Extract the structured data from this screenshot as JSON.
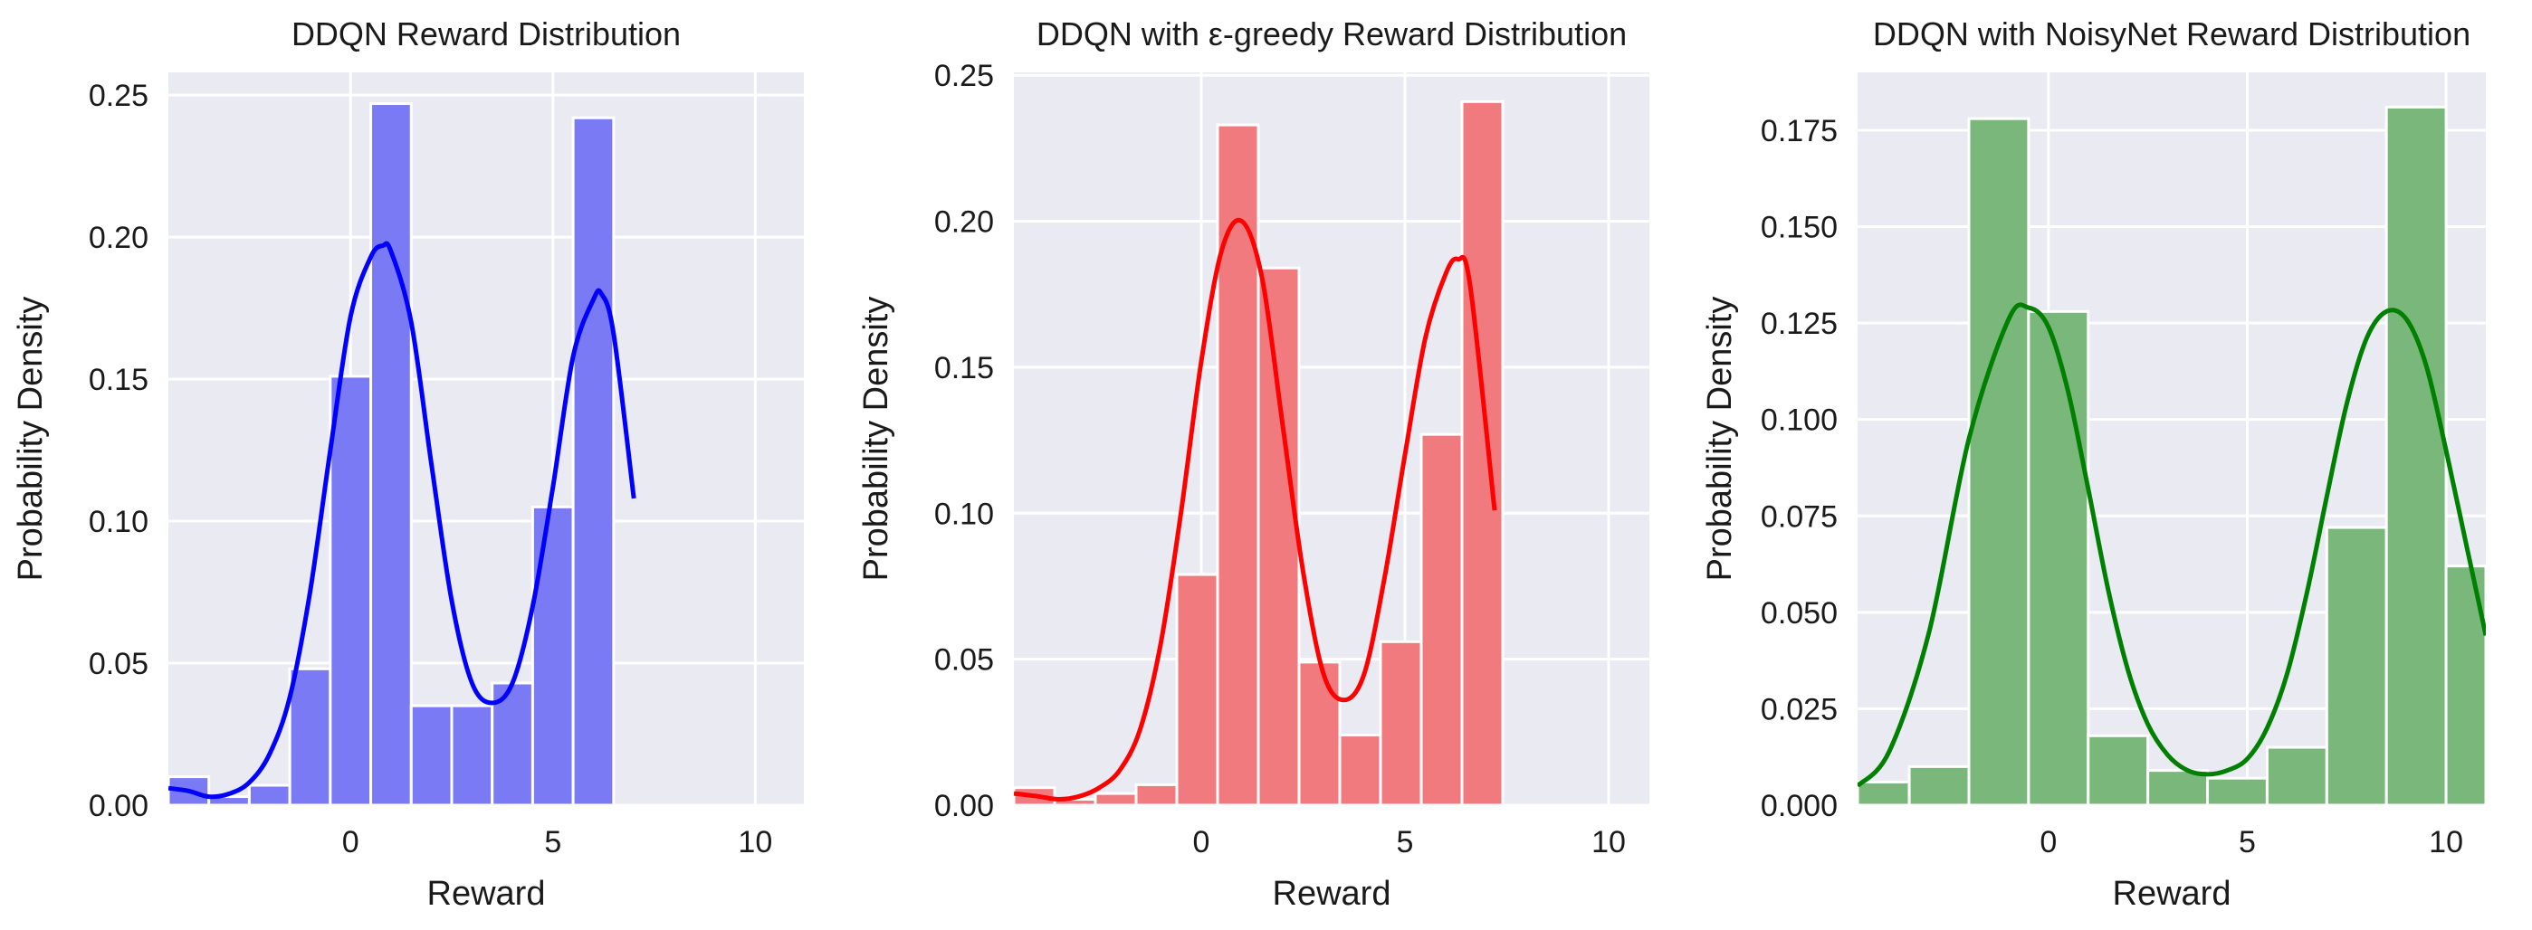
{
  "colors": {
    "background": "#eaeaf2",
    "grid": "#ffffff"
  },
  "chart_data": [
    {
      "type": "bar",
      "title": "DDQN Reward Distribution",
      "xlabel": "Reward",
      "ylabel": "Probability Density",
      "xlim": [
        -4.5,
        11.2
      ],
      "ylim": [
        0,
        0.258
      ],
      "xticks": [
        0,
        5,
        10
      ],
      "yticks": [
        0.0,
        0.05,
        0.1,
        0.15,
        0.2,
        0.25
      ],
      "ytick_labels": [
        "0.00",
        "0.05",
        "0.10",
        "0.15",
        "0.20",
        "0.25"
      ],
      "grid": true,
      "bar_color": "#7a7af5",
      "line_color": "#0000ff",
      "bins": [
        {
          "x0": -4.5,
          "x1": -3.5,
          "value": 0.01
        },
        {
          "x0": -3.5,
          "x1": -2.5,
          "value": 0.003
        },
        {
          "x0": -2.5,
          "x1": -1.5,
          "value": 0.007
        },
        {
          "x0": -1.5,
          "x1": -0.5,
          "value": 0.048
        },
        {
          "x0": -0.5,
          "x1": 0.5,
          "value": 0.151
        },
        {
          "x0": 0.5,
          "x1": 1.5,
          "value": 0.247
        },
        {
          "x0": 1.5,
          "x1": 2.5,
          "value": 0.035
        },
        {
          "x0": 2.5,
          "x1": 3.5,
          "value": 0.035
        },
        {
          "x0": 3.5,
          "x1": 4.5,
          "value": 0.043
        },
        {
          "x0": 4.5,
          "x1": 5.5,
          "value": 0.105
        },
        {
          "x0": 5.5,
          "x1": 6.5,
          "value": 0.242
        }
      ],
      "kde": {
        "x": [
          -4.5,
          -4.0,
          -3.5,
          -3.0,
          -2.5,
          -2.0,
          -1.5,
          -1.0,
          -0.5,
          0.0,
          0.5,
          0.8,
          1.0,
          1.5,
          2.0,
          2.5,
          3.0,
          3.5,
          4.0,
          4.5,
          5.0,
          5.5,
          6.0,
          6.2,
          6.5,
          7.0
        ],
        "y": [
          0.006,
          0.005,
          0.003,
          0.004,
          0.008,
          0.018,
          0.038,
          0.075,
          0.125,
          0.172,
          0.193,
          0.197,
          0.195,
          0.17,
          0.12,
          0.072,
          0.043,
          0.036,
          0.043,
          0.07,
          0.112,
          0.158,
          0.178,
          0.18,
          0.166,
          0.108
        ]
      }
    },
    {
      "type": "bar",
      "title": "DDQN with ε-greedy Reward Distribution",
      "xlabel": "Reward",
      "ylabel": "Probability Density",
      "xlim": [
        -4.6,
        11.0
      ],
      "ylim": [
        0,
        0.251
      ],
      "xticks": [
        0,
        5,
        10
      ],
      "yticks": [
        0.0,
        0.05,
        0.1,
        0.15,
        0.2,
        0.25
      ],
      "ytick_labels": [
        "0.00",
        "0.05",
        "0.10",
        "0.15",
        "0.20",
        "0.25"
      ],
      "grid": true,
      "bar_color": "#f07a7e",
      "line_color": "#ff0000",
      "bins": [
        {
          "x0": -4.6,
          "x1": -3.6,
          "value": 0.006
        },
        {
          "x0": -3.6,
          "x1": -2.6,
          "value": 0.002
        },
        {
          "x0": -2.6,
          "x1": -1.6,
          "value": 0.004
        },
        {
          "x0": -1.6,
          "x1": -0.6,
          "value": 0.007
        },
        {
          "x0": -0.6,
          "x1": 0.4,
          "value": 0.079
        },
        {
          "x0": 0.4,
          "x1": 1.4,
          "value": 0.233
        },
        {
          "x0": 1.4,
          "x1": 2.4,
          "value": 0.184
        },
        {
          "x0": 2.4,
          "x1": 3.4,
          "value": 0.049
        },
        {
          "x0": 3.4,
          "x1": 4.4,
          "value": 0.024
        },
        {
          "x0": 4.4,
          "x1": 5.4,
          "value": 0.056
        },
        {
          "x0": 5.4,
          "x1": 6.4,
          "value": 0.127
        },
        {
          "x0": 6.4,
          "x1": 7.4,
          "value": 0.241
        }
      ],
      "kde": {
        "x": [
          -4.6,
          -4.0,
          -3.5,
          -3.0,
          -2.5,
          -2.0,
          -1.5,
          -1.0,
          -0.5,
          0.0,
          0.5,
          1.0,
          1.5,
          2.0,
          2.5,
          3.0,
          3.5,
          4.0,
          4.5,
          5.0,
          5.5,
          6.0,
          6.3,
          6.6,
          7.2
        ],
        "y": [
          0.004,
          0.003,
          0.002,
          0.003,
          0.006,
          0.012,
          0.026,
          0.055,
          0.1,
          0.152,
          0.19,
          0.2,
          0.18,
          0.13,
          0.08,
          0.045,
          0.036,
          0.045,
          0.078,
          0.12,
          0.16,
          0.182,
          0.187,
          0.178,
          0.101
        ]
      }
    },
    {
      "type": "bar",
      "title": "DDQN with NoisyNet Reward Distribution",
      "xlabel": "Reward",
      "ylabel": "Probability Density",
      "xlim": [
        -4.8,
        11.0
      ],
      "ylim": [
        0,
        0.19
      ],
      "xticks": [
        0,
        5,
        10
      ],
      "yticks": [
        0.0,
        0.025,
        0.05,
        0.075,
        0.1,
        0.125,
        0.15,
        0.175
      ],
      "ytick_labels": [
        "0.000",
        "0.025",
        "0.050",
        "0.075",
        "0.100",
        "0.125",
        "0.150",
        "0.175"
      ],
      "grid": true,
      "bar_color": "#79b77a",
      "line_color": "#008000",
      "bins": [
        {
          "x0": -4.8,
          "x1": -3.5,
          "value": 0.006
        },
        {
          "x0": -3.5,
          "x1": -2.0,
          "value": 0.01
        },
        {
          "x0": -2.0,
          "x1": -0.5,
          "value": 0.178
        },
        {
          "x0": -0.5,
          "x1": 1.0,
          "value": 0.128
        },
        {
          "x0": 1.0,
          "x1": 2.5,
          "value": 0.018
        },
        {
          "x0": 2.5,
          "x1": 4.0,
          "value": 0.009
        },
        {
          "x0": 4.0,
          "x1": 5.5,
          "value": 0.007
        },
        {
          "x0": 5.5,
          "x1": 7.0,
          "value": 0.015
        },
        {
          "x0": 7.0,
          "x1": 8.5,
          "value": 0.072
        },
        {
          "x0": 8.5,
          "x1": 10.0,
          "value": 0.181
        },
        {
          "x0": 10.0,
          "x1": 11.0,
          "value": 0.062
        }
      ],
      "kde": {
        "x": [
          -4.8,
          -4.0,
          -3.0,
          -2.0,
          -1.0,
          -0.5,
          0.0,
          0.5,
          1.0,
          1.5,
          2.0,
          2.5,
          3.0,
          3.5,
          4.0,
          4.5,
          5.0,
          5.5,
          6.0,
          6.5,
          7.0,
          7.5,
          8.0,
          8.5,
          9.0,
          9.5,
          10.0,
          10.5,
          11.0
        ],
        "y": [
          0.005,
          0.014,
          0.045,
          0.095,
          0.126,
          0.129,
          0.124,
          0.107,
          0.082,
          0.056,
          0.035,
          0.021,
          0.013,
          0.009,
          0.008,
          0.009,
          0.012,
          0.02,
          0.034,
          0.055,
          0.08,
          0.104,
          0.121,
          0.128,
          0.126,
          0.114,
          0.092,
          0.068,
          0.044
        ]
      }
    }
  ]
}
